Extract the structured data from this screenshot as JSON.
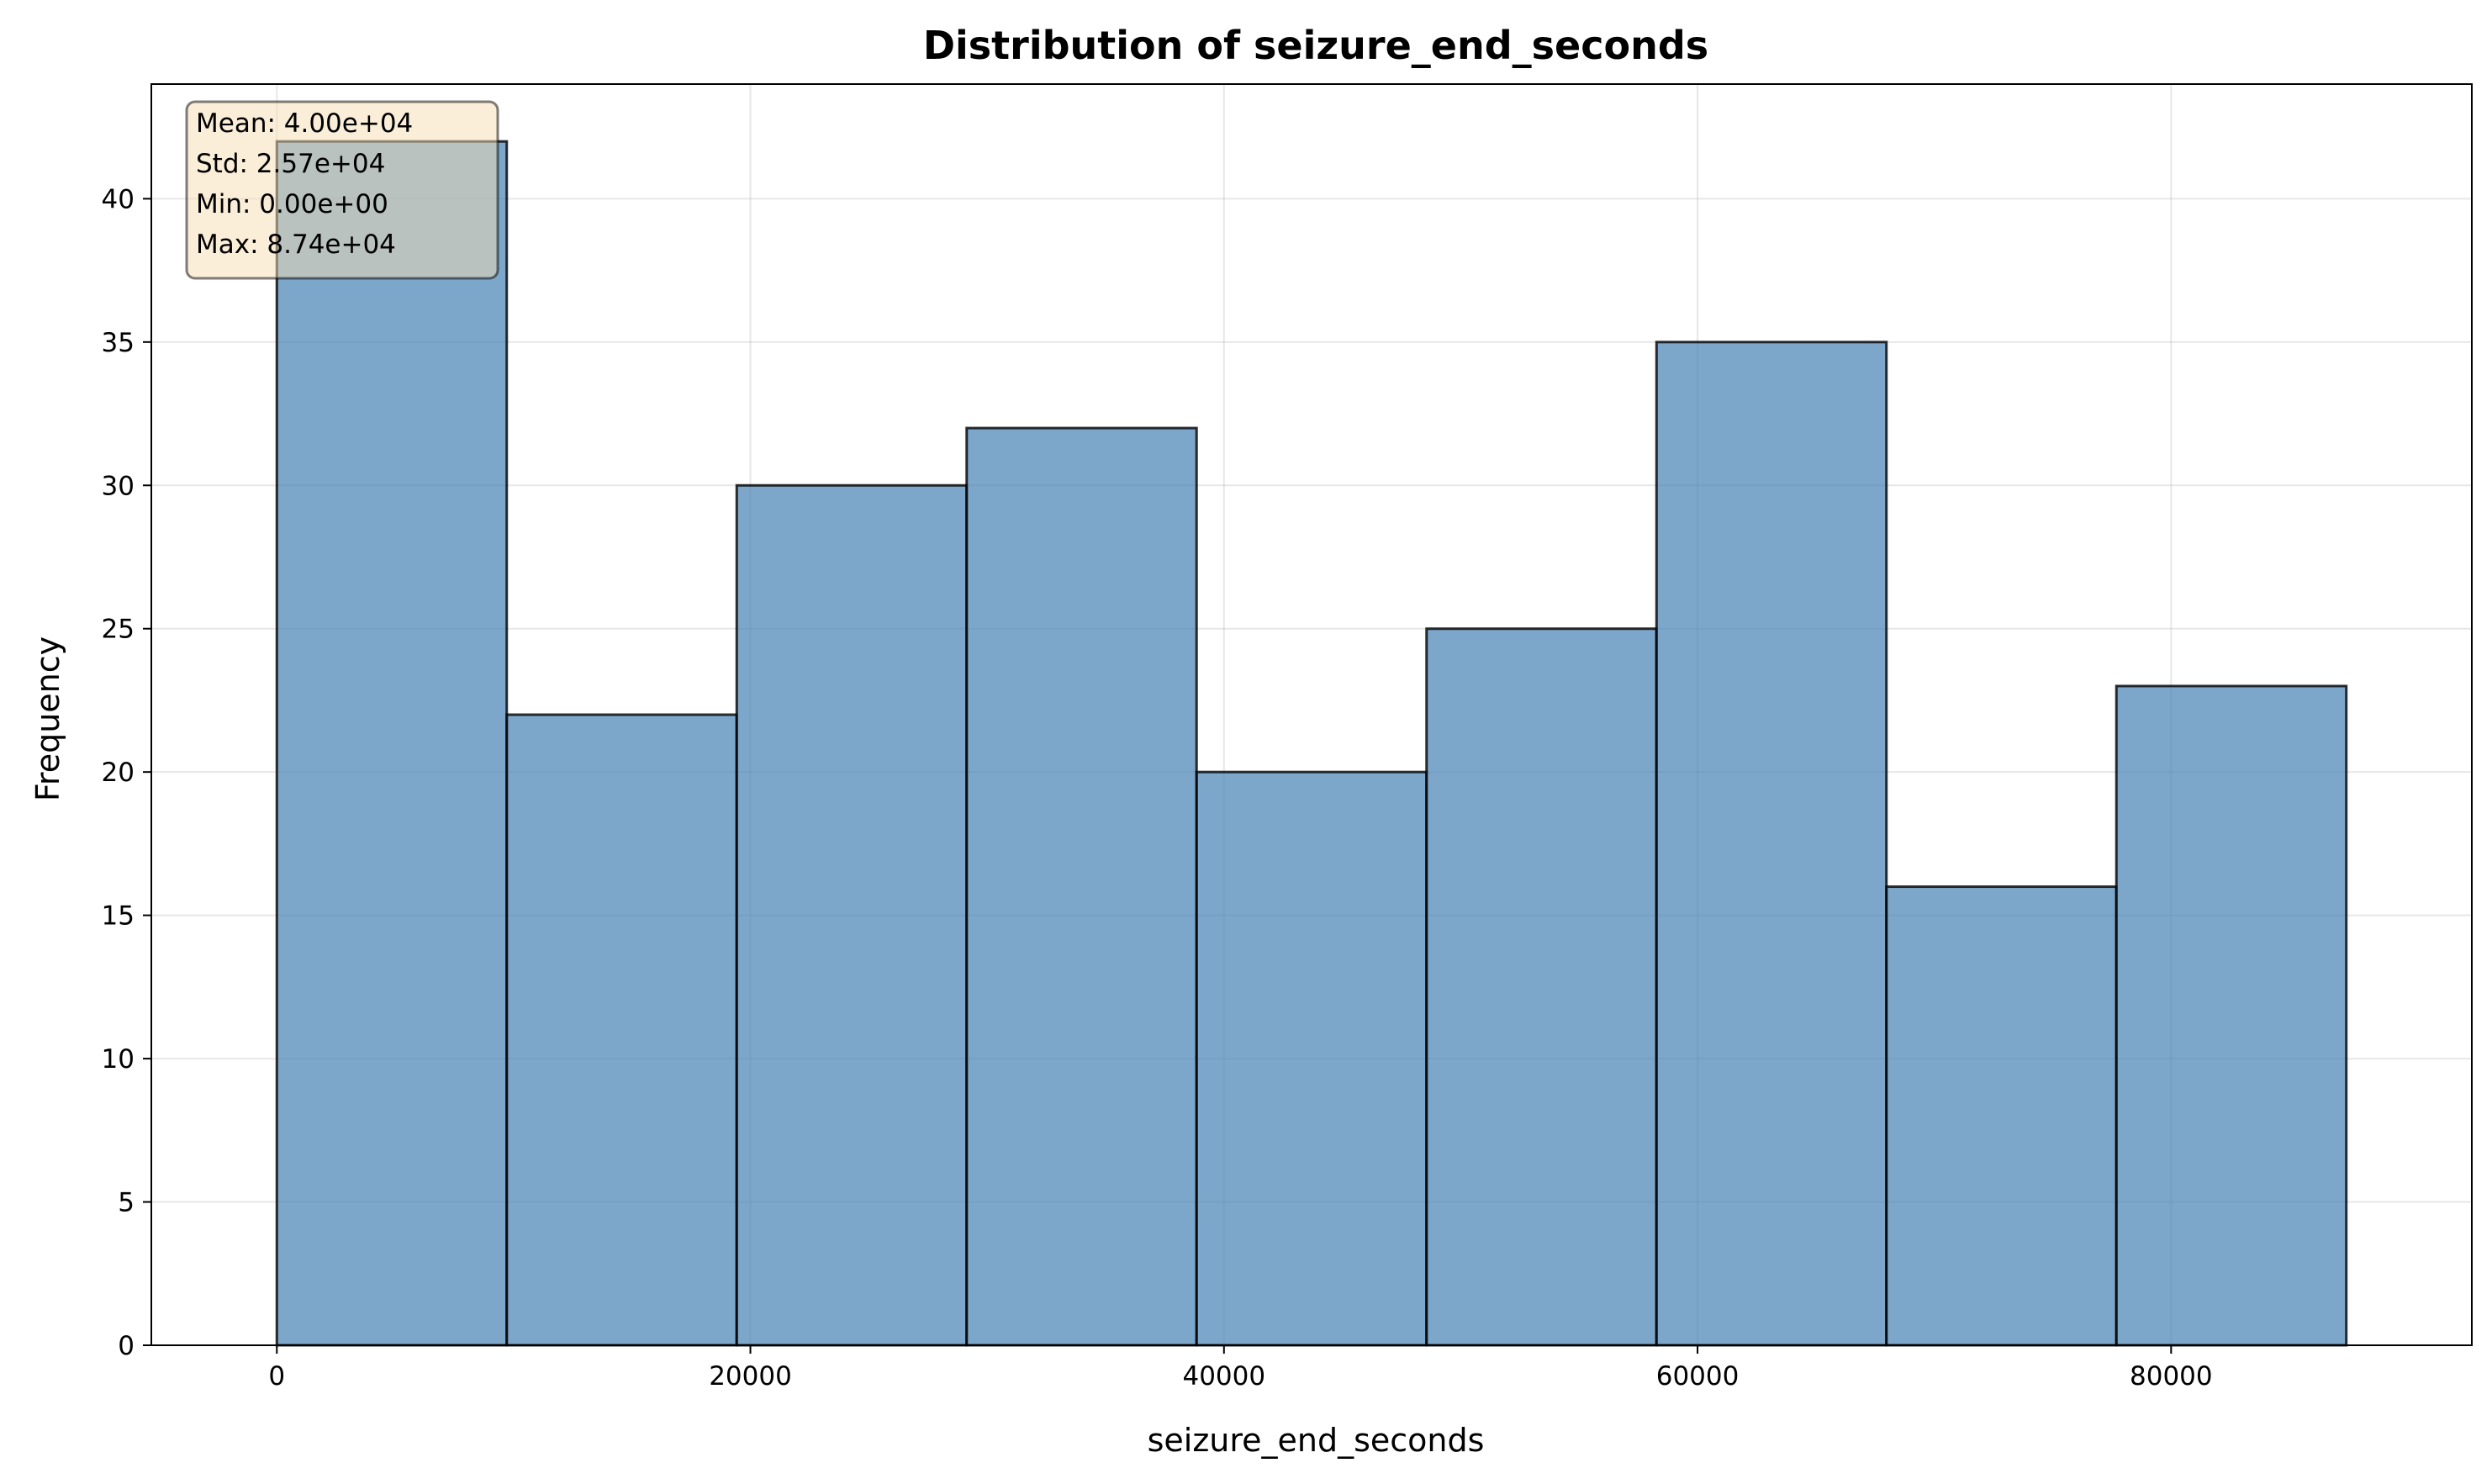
{
  "colors": {
    "bar_fill": "#4682b4",
    "bar_edge": "#000000",
    "grid": "#b0b0b0",
    "stats_box_fill": "#f5deb3",
    "stats_box_edge": "#000000"
  },
  "chart_data": {
    "type": "bar",
    "title": "Distribution of seizure_end_seconds",
    "xlabel": "seizure_end_seconds",
    "ylabel": "Frequency",
    "bin_edges": [
      0,
      9711,
      19422,
      29133,
      38844,
      48556,
      58267,
      67978,
      77689,
      87400
    ],
    "values": [
      42,
      22,
      30,
      32,
      20,
      25,
      35,
      16,
      23
    ],
    "xlim": [
      -5300,
      92700
    ],
    "ylim": [
      0,
      44
    ],
    "xticks": [
      0,
      20000,
      40000,
      60000,
      80000
    ],
    "xtick_labels": [
      "0",
      "20000",
      "40000",
      "60000",
      "80000"
    ],
    "yticks": [
      0,
      5,
      10,
      15,
      20,
      25,
      30,
      35,
      40
    ],
    "ytick_labels": [
      "0",
      "5",
      "10",
      "15",
      "20",
      "25",
      "30",
      "35",
      "40"
    ],
    "grid": true,
    "stats": [
      "Mean: 4.00e+04",
      "Std: 2.57e+04",
      "Min: 0.00e+00",
      "Max: 8.74e+04"
    ],
    "stats_placement": "top-left"
  }
}
